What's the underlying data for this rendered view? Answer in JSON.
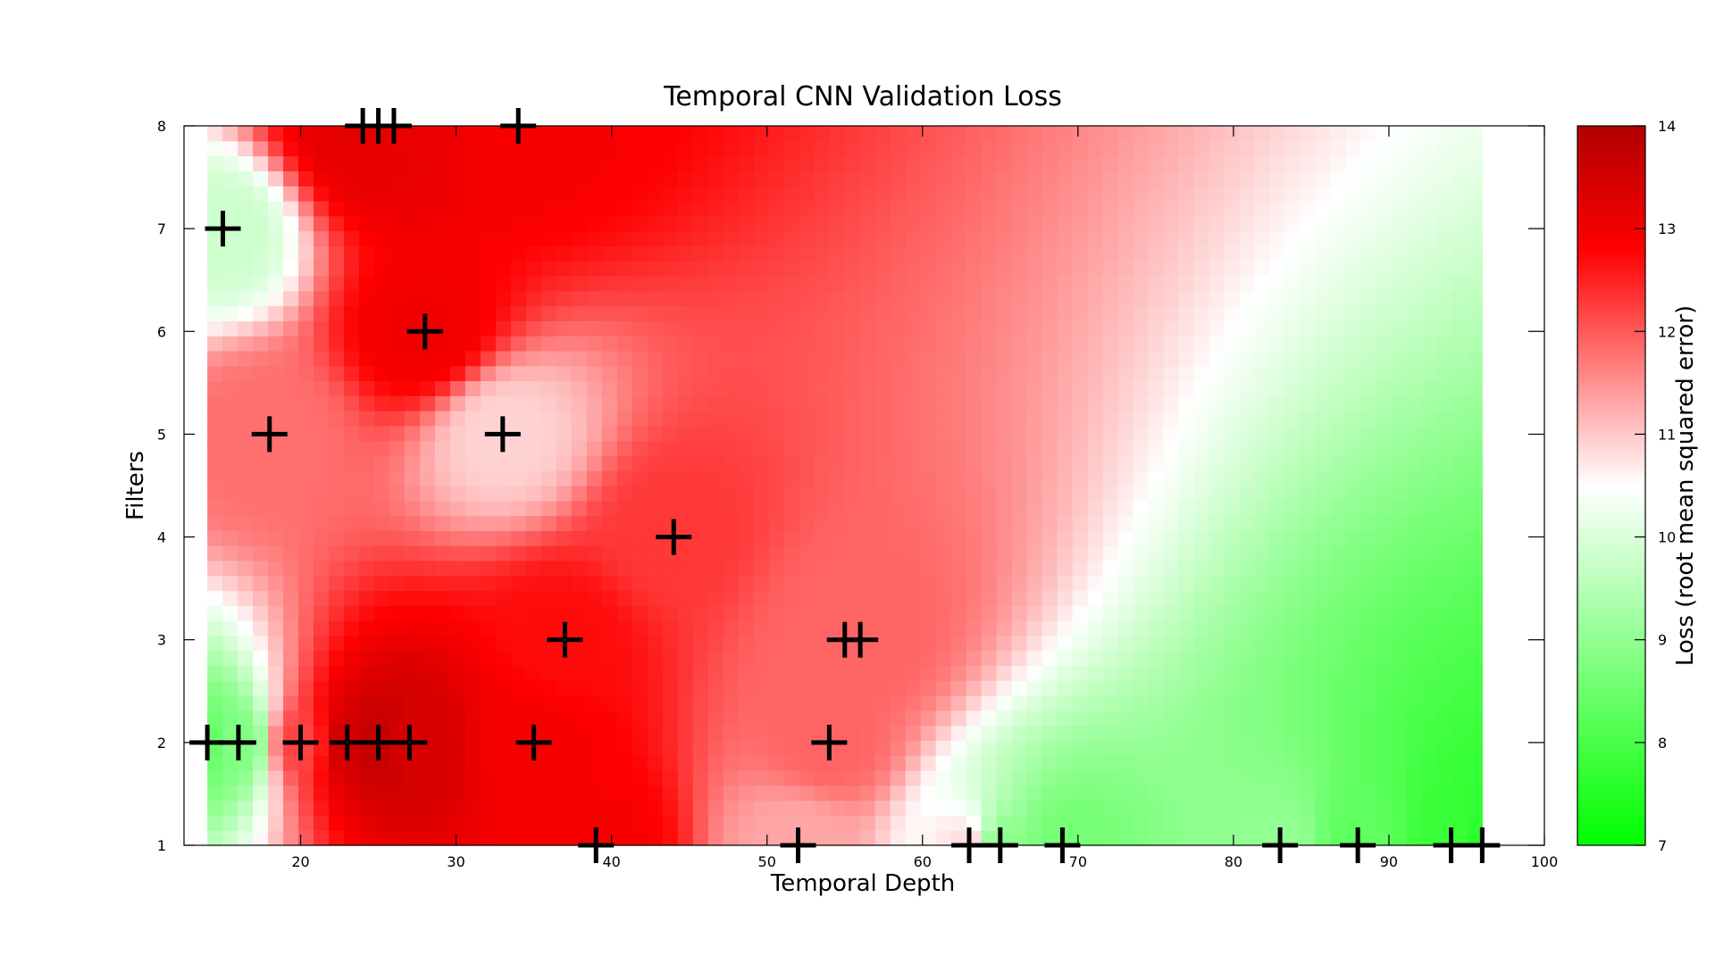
{
  "chart_data": {
    "type": "heatmap",
    "title": "Temporal CNN Validation Loss",
    "xlabel": "Temporal Depth",
    "ylabel": "Filters",
    "colorbar_label": "Loss (root mean squared error)",
    "xlim": [
      12.5,
      100
    ],
    "ylim": [
      1,
      8
    ],
    "x_ticks": [
      20,
      30,
      40,
      50,
      60,
      70,
      80,
      90,
      100
    ],
    "y_ticks": [
      1,
      2,
      3,
      4,
      5,
      6,
      7,
      8
    ],
    "colorbar_ticks": [
      7,
      8,
      9,
      10,
      11,
      12,
      13,
      14
    ],
    "color_range": [
      7,
      14
    ],
    "colormap": [
      {
        "value": 7,
        "color": "#00ff00"
      },
      {
        "value": 10.5,
        "color": "#ffffff"
      },
      {
        "value": 12.8,
        "color": "#ff0000"
      },
      {
        "value": 14,
        "color": "#b00000"
      }
    ],
    "grid": false,
    "heatmap_x_range": [
      14,
      96
    ],
    "samples": [
      {
        "x": 14,
        "y": 2,
        "loss": 8.4
      },
      {
        "x": 16,
        "y": 2,
        "loss": 8.8
      },
      {
        "x": 15,
        "y": 7,
        "loss": 9.8
      },
      {
        "x": 20,
        "y": 2,
        "loss": 12.2
      },
      {
        "x": 18,
        "y": 5,
        "loss": 11.8
      },
      {
        "x": 23,
        "y": 2,
        "loss": 13.5
      },
      {
        "x": 25,
        "y": 2,
        "loss": 13.7
      },
      {
        "x": 27,
        "y": 2,
        "loss": 13.4
      },
      {
        "x": 24,
        "y": 8,
        "loss": 13.2
      },
      {
        "x": 25,
        "y": 8,
        "loss": 13.2
      },
      {
        "x": 26,
        "y": 8,
        "loss": 13.1
      },
      {
        "x": 28,
        "y": 6,
        "loss": 13.0
      },
      {
        "x": 33,
        "y": 5,
        "loss": 10.9
      },
      {
        "x": 34,
        "y": 8,
        "loss": 12.9
      },
      {
        "x": 35,
        "y": 2,
        "loss": 12.9
      },
      {
        "x": 37,
        "y": 3,
        "loss": 12.7
      },
      {
        "x": 39,
        "y": 1,
        "loss": 12.9
      },
      {
        "x": 44,
        "y": 4,
        "loss": 12.3
      },
      {
        "x": 52,
        "y": 1,
        "loss": 11.3
      },
      {
        "x": 54,
        "y": 2,
        "loss": 11.9
      },
      {
        "x": 55,
        "y": 3,
        "loss": 11.9
      },
      {
        "x": 56,
        "y": 3,
        "loss": 11.9
      },
      {
        "x": 63,
        "y": 1,
        "loss": 10.8
      },
      {
        "x": 65,
        "y": 1,
        "loss": 8.9
      },
      {
        "x": 69,
        "y": 1,
        "loss": 8.6
      },
      {
        "x": 83,
        "y": 1,
        "loss": 9.0
      },
      {
        "x": 88,
        "y": 1,
        "loss": 8.3
      },
      {
        "x": 94,
        "y": 1,
        "loss": 7.8
      },
      {
        "x": 96,
        "y": 1,
        "loss": 7.6
      }
    ]
  }
}
